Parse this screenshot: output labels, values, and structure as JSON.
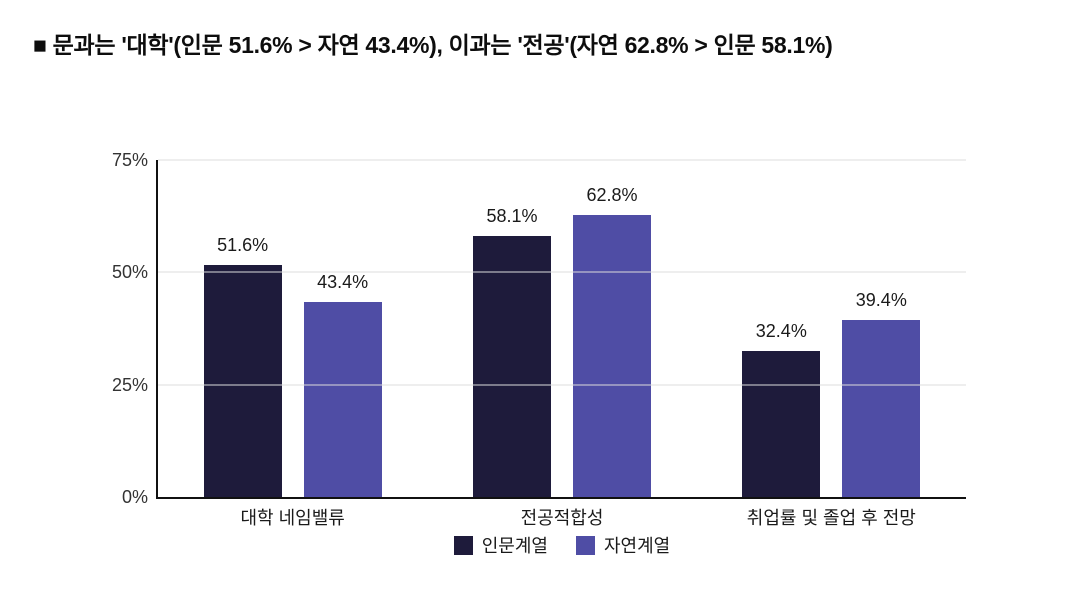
{
  "title": "■ 문과는 '대학'(인문 51.6% > 자연 43.4%), 이과는 '전공'(자연 62.8% > 인문 58.1%)",
  "colors": {
    "series_humanities": "#1e1b3b",
    "series_natural": "#4f4da5",
    "axis": "#111111",
    "gridline": "#dcdcdc",
    "text": "#1a1a1a"
  },
  "chart_data": {
    "type": "bar",
    "title": "■ 문과는 '대학'(인문 51.6% > 자연 43.4%), 이과는 '전공'(자연 62.8% > 인문 58.1%)",
    "categories": [
      "대학 네임밸류",
      "전공적합성",
      "취업률 및 졸업 후 전망"
    ],
    "series": [
      {
        "name": "인문계열",
        "color": "#1e1b3b",
        "values": [
          51.6,
          58.1,
          32.4
        ]
      },
      {
        "name": "자연계열",
        "color": "#4f4da5",
        "values": [
          43.4,
          62.8,
          39.4
        ]
      }
    ],
    "value_suffix": "%",
    "xlabel": "",
    "ylabel": "",
    "ylim": [
      0,
      75
    ],
    "yticks": [
      "0%",
      "25%",
      "50%",
      "75%"
    ],
    "ytick_values": [
      0,
      25,
      50,
      75
    ],
    "grid": true,
    "legend_position": "bottom"
  }
}
